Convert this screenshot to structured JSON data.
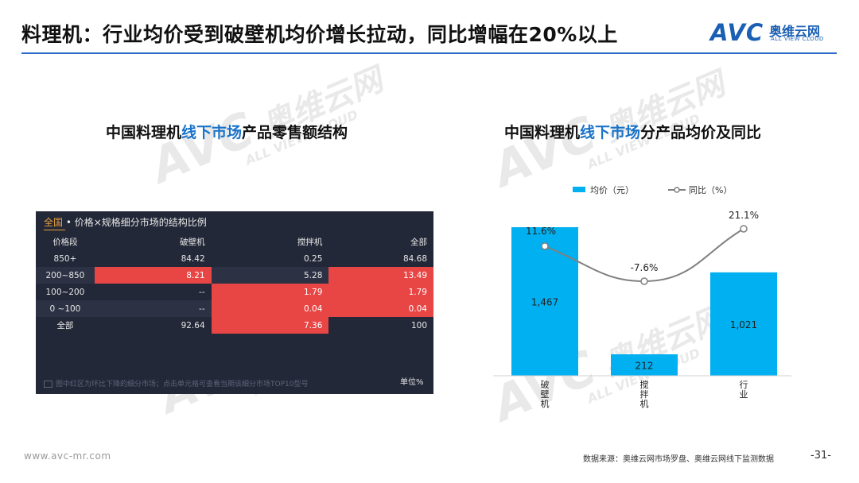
{
  "title": "料理机：行业均价受到破壁机均价增长拉动，同比增幅在20%以上",
  "logo": {
    "mark": "AVC",
    "cn": "奥维云网",
    "en": "ALL VIEW CLOUD"
  },
  "watermark": {
    "mark": "AVC",
    "cn": "奥维云网",
    "en": "ALL VIEW CLOUD"
  },
  "left_chart": {
    "title_a": "中国料理机",
    "title_hl": "线下市场",
    "title_b": "产品零售额结构",
    "panel_all": "全国",
    "panel_title": " • 价格×规格细分市场的结构比例",
    "columns": [
      "价格段",
      "破壁机",
      "搅拌机",
      "全部"
    ],
    "rows": [
      {
        "label": "850+",
        "values": [
          "84.42",
          "0.25",
          "84.68"
        ],
        "red": [
          false,
          false,
          false
        ]
      },
      {
        "label": "200~850",
        "values": [
          "8.21",
          "5.28",
          "13.49"
        ],
        "red": [
          true,
          false,
          true
        ]
      },
      {
        "label": "100~200",
        "values": [
          "--",
          "1.79",
          "1.79"
        ],
        "red": [
          false,
          true,
          true
        ]
      },
      {
        "label": "0 ~100",
        "values": [
          "--",
          "0.04",
          "0.04"
        ],
        "red": [
          false,
          true,
          true
        ]
      },
      {
        "label": "全部",
        "values": [
          "92.64",
          "7.36",
          "100"
        ],
        "red": [
          false,
          true,
          false
        ]
      }
    ],
    "footnote": "图中红区为环比下降的细分市场；点击单元格可查看当期该细分市场TOP10型号",
    "unit": "单位%"
  },
  "right_chart": {
    "title_a": "中国料理机",
    "title_hl": "线下市场",
    "title_b": "分产品均价及同比"
  },
  "chart_data": {
    "type": "bar",
    "categories": [
      "破壁机",
      "搅拌机",
      "行业"
    ],
    "series": [
      {
        "name": "均价（元）",
        "type": "bar",
        "values": [
          1467,
          212,
          1021
        ],
        "labels": [
          "1,467",
          "212",
          "1,021"
        ]
      },
      {
        "name": "同比（%）",
        "type": "line",
        "values": [
          11.6,
          -7.6,
          21.1
        ],
        "labels": [
          "11.6%",
          "-7.6%",
          "21.1%"
        ]
      }
    ],
    "legend_position": "top",
    "bar_color": "#00b0f0",
    "line_color": "#7f7f7f"
  },
  "footer": {
    "url": "www.avc-mr.com",
    "source": "数据来源：奥维云网市场罗盘、奥维云网线下监测数据",
    "page": "-31-"
  }
}
